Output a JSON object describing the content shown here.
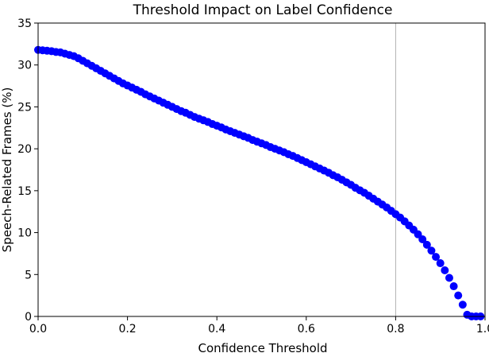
{
  "chart_data": {
    "type": "scatter",
    "title": "Threshold Impact on Label Confidence",
    "xlabel": "Confidence Threshold",
    "ylabel": "Speech-Related Frames (%)",
    "xlim": [
      0.0,
      1.0
    ],
    "ylim": [
      0,
      35
    ],
    "xticks": [
      0.0,
      0.2,
      0.4,
      0.6,
      0.8,
      1.0
    ],
    "xtick_labels": [
      "0.0",
      "0.2",
      "0.4",
      "0.6",
      "0.8",
      "1.0"
    ],
    "yticks": [
      0,
      5,
      10,
      15,
      20,
      25,
      30,
      35
    ],
    "ytick_labels": [
      "0",
      "5",
      "10",
      "15",
      "20",
      "25",
      "30",
      "35"
    ],
    "grid": "vertical at x = 0.8",
    "marker_color": "#0000ff",
    "series": [
      {
        "x": [
          0.0,
          0.01,
          0.02,
          0.03,
          0.04,
          0.05,
          0.06,
          0.07,
          0.08,
          0.09,
          0.1,
          0.11,
          0.12,
          0.13,
          0.14,
          0.15,
          0.16,
          0.17,
          0.18,
          0.19,
          0.2,
          0.21,
          0.22,
          0.23,
          0.24,
          0.25,
          0.26,
          0.27,
          0.28,
          0.29,
          0.3,
          0.31,
          0.32,
          0.33,
          0.34,
          0.35,
          0.36,
          0.37,
          0.38,
          0.39,
          0.4,
          0.41,
          0.42,
          0.43,
          0.44,
          0.45,
          0.46,
          0.47,
          0.48,
          0.49,
          0.5,
          0.51,
          0.52,
          0.53,
          0.54,
          0.55,
          0.56,
          0.57,
          0.58,
          0.59,
          0.6,
          0.61,
          0.62,
          0.63,
          0.64,
          0.65,
          0.66,
          0.67,
          0.68,
          0.69,
          0.7,
          0.71,
          0.72,
          0.73,
          0.74,
          0.75,
          0.76,
          0.77,
          0.78,
          0.79,
          0.8,
          0.81,
          0.82,
          0.83,
          0.84,
          0.85,
          0.86,
          0.87,
          0.88,
          0.89,
          0.9,
          0.91,
          0.92,
          0.93,
          0.94,
          0.95,
          0.96,
          0.97,
          0.98,
          0.99
        ],
        "y": [
          31.8,
          31.75,
          31.7,
          31.65,
          31.55,
          31.5,
          31.35,
          31.2,
          31.05,
          30.8,
          30.5,
          30.2,
          29.9,
          29.6,
          29.3,
          29.0,
          28.7,
          28.4,
          28.1,
          27.8,
          27.55,
          27.3,
          27.05,
          26.8,
          26.5,
          26.25,
          26.0,
          25.75,
          25.5,
          25.25,
          25.0,
          24.75,
          24.5,
          24.3,
          24.05,
          23.8,
          23.6,
          23.4,
          23.2,
          22.95,
          22.75,
          22.55,
          22.3,
          22.1,
          21.9,
          21.7,
          21.5,
          21.3,
          21.05,
          20.85,
          20.65,
          20.45,
          20.2,
          20.0,
          19.8,
          19.6,
          19.35,
          19.15,
          18.9,
          18.65,
          18.4,
          18.15,
          17.9,
          17.65,
          17.4,
          17.15,
          16.85,
          16.6,
          16.3,
          16.0,
          15.7,
          15.35,
          15.05,
          14.75,
          14.4,
          14.05,
          13.7,
          13.35,
          13.0,
          12.6,
          12.2,
          11.8,
          11.35,
          10.85,
          10.35,
          9.8,
          9.2,
          8.55,
          7.85,
          7.1,
          6.35,
          5.5,
          4.6,
          3.6,
          2.5,
          1.4,
          0.2,
          0.0,
          0.0,
          0.0
        ]
      }
    ]
  }
}
